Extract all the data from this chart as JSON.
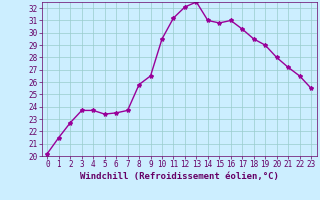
{
  "x": [
    0,
    1,
    2,
    3,
    4,
    5,
    6,
    7,
    8,
    9,
    10,
    11,
    12,
    13,
    14,
    15,
    16,
    17,
    18,
    19,
    20,
    21,
    22,
    23
  ],
  "y": [
    20.2,
    21.5,
    22.7,
    23.7,
    23.7,
    23.4,
    23.5,
    23.7,
    25.8,
    26.5,
    29.5,
    31.2,
    32.1,
    32.5,
    31.0,
    30.8,
    31.0,
    30.3,
    29.5,
    29.0,
    28.0,
    27.2,
    26.5,
    25.5
  ],
  "line_color": "#990099",
  "marker": "*",
  "marker_size": 3,
  "xlabel": "Windchill (Refroidissement éolien,°C)",
  "xlabel_fontsize": 6.5,
  "xlim": [
    -0.5,
    23.5
  ],
  "ylim": [
    20,
    32.5
  ],
  "yticks": [
    20,
    21,
    22,
    23,
    24,
    25,
    26,
    27,
    28,
    29,
    30,
    31,
    32
  ],
  "xticks": [
    0,
    1,
    2,
    3,
    4,
    5,
    6,
    7,
    8,
    9,
    10,
    11,
    12,
    13,
    14,
    15,
    16,
    17,
    18,
    19,
    20,
    21,
    22,
    23
  ],
  "bg_color": "#cceeff",
  "grid_color": "#99cccc",
  "line_border_color": "#660066",
  "tick_color": "#660066",
  "label_color": "#660066",
  "tick_fontsize": 5.5,
  "linewidth": 1.0
}
